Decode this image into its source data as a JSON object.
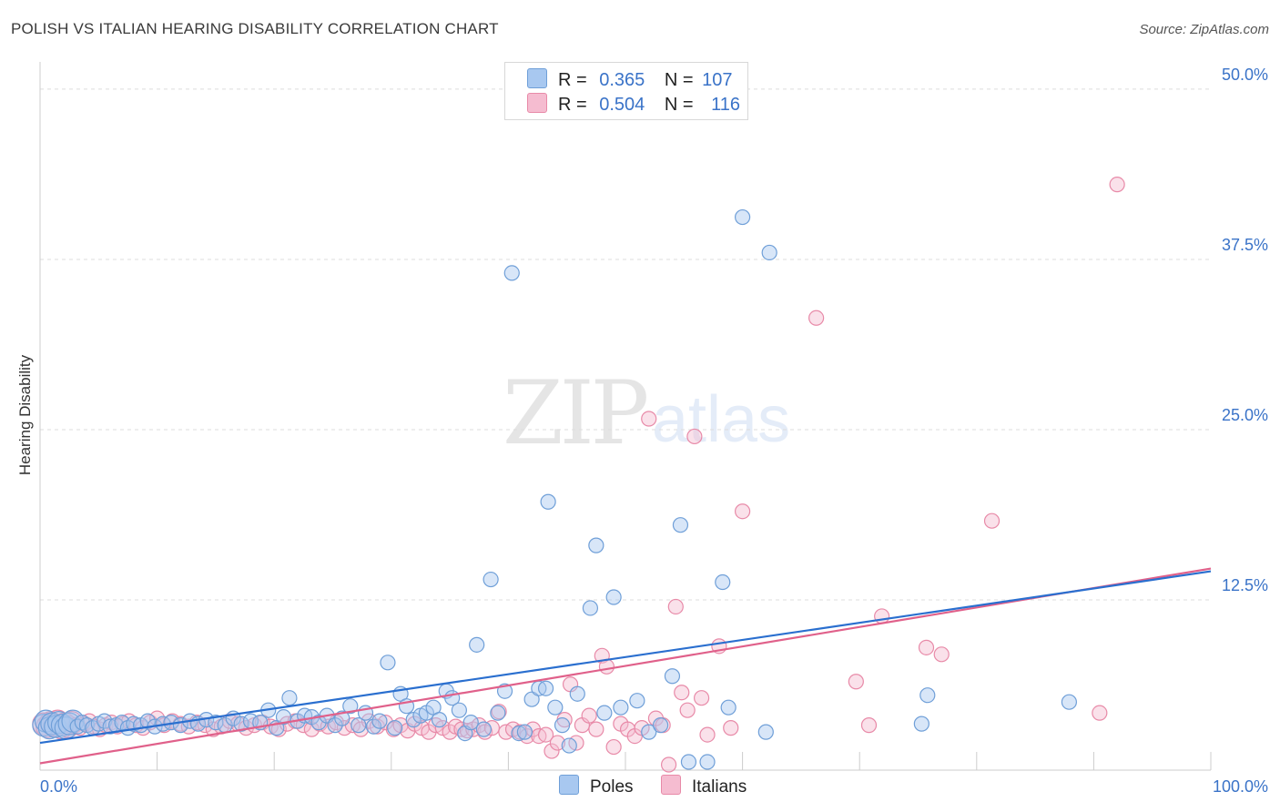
{
  "header": {
    "title": "POLISH VS ITALIAN HEARING DISABILITY CORRELATION CHART",
    "source": "Source: ZipAtlas.com"
  },
  "legend": {
    "r_label": "R =",
    "n_label": "N =",
    "poles": {
      "r": "0.365",
      "n": "107"
    },
    "italians": {
      "r": "0.504",
      "n": "116"
    }
  },
  "bottom_legend": {
    "poles": "Poles",
    "italians": "Italians"
  },
  "watermark": {
    "zip": "ZIP",
    "atlas": "atlas"
  },
  "colors": {
    "poles_fill": "#a8c8f0",
    "poles_stroke": "#6f9fd8",
    "poles_line": "#2a6fcf",
    "italians_fill": "#f5bcd0",
    "italians_stroke": "#e88aa8",
    "italians_line": "#e0608a"
  },
  "chart_data": {
    "type": "scatter",
    "title": "POLISH VS ITALIAN HEARING DISABILITY CORRELATION CHART",
    "xlabel": "",
    "ylabel": "Hearing Disability",
    "xlim": [
      0,
      100
    ],
    "ylim": [
      0,
      52
    ],
    "x_tick_labels": [
      "0.0%",
      "100.0%"
    ],
    "y_ticks": [
      12.5,
      25.0,
      37.5,
      50.0
    ],
    "y_tick_labels": [
      "12.5%",
      "25.0%",
      "37.5%",
      "50.0%"
    ],
    "grid": "horizontal dashed",
    "series": [
      {
        "name": "Poles",
        "trend": {
          "x": [
            0,
            100
          ],
          "y": [
            2.0,
            14.6
          ]
        },
        "points": [
          [
            0.3,
            3.3
          ],
          [
            0.5,
            3.6
          ],
          [
            0.8,
            3.1
          ],
          [
            1.0,
            3.4
          ],
          [
            1.3,
            3.2
          ],
          [
            1.6,
            3.5
          ],
          [
            1.9,
            3.3
          ],
          [
            2.2,
            3.1
          ],
          [
            2.5,
            3.4
          ],
          [
            2.8,
            3.6
          ],
          [
            3.2,
            3.2
          ],
          [
            3.6,
            3.5
          ],
          [
            4.0,
            3.3
          ],
          [
            4.5,
            3.1
          ],
          [
            5.0,
            3.4
          ],
          [
            5.5,
            3.6
          ],
          [
            6.0,
            3.2
          ],
          [
            6.5,
            3.3
          ],
          [
            7.0,
            3.5
          ],
          [
            7.5,
            3.1
          ],
          [
            8.0,
            3.4
          ],
          [
            8.6,
            3.3
          ],
          [
            9.2,
            3.6
          ],
          [
            9.8,
            3.2
          ],
          [
            10.5,
            3.4
          ],
          [
            11.2,
            3.5
          ],
          [
            12.0,
            3.3
          ],
          [
            12.8,
            3.6
          ],
          [
            13.5,
            3.4
          ],
          [
            14.2,
            3.7
          ],
          [
            15.0,
            3.5
          ],
          [
            15.8,
            3.3
          ],
          [
            16.5,
            3.8
          ],
          [
            17.2,
            3.4
          ],
          [
            18.0,
            3.6
          ],
          [
            18.8,
            3.5
          ],
          [
            19.5,
            4.4
          ],
          [
            20.2,
            3.1
          ],
          [
            20.8,
            3.9
          ],
          [
            21.3,
            5.3
          ],
          [
            22.0,
            3.6
          ],
          [
            22.6,
            4.0
          ],
          [
            23.2,
            3.9
          ],
          [
            23.8,
            3.5
          ],
          [
            24.5,
            4.0
          ],
          [
            25.2,
            3.3
          ],
          [
            25.8,
            3.8
          ],
          [
            26.5,
            4.7
          ],
          [
            27.2,
            3.3
          ],
          [
            27.8,
            4.2
          ],
          [
            28.5,
            3.2
          ],
          [
            29.0,
            3.6
          ],
          [
            29.7,
            7.9
          ],
          [
            30.3,
            3.1
          ],
          [
            30.8,
            5.6
          ],
          [
            31.3,
            4.7
          ],
          [
            31.9,
            3.7
          ],
          [
            32.5,
            4.0
          ],
          [
            33.0,
            4.2
          ],
          [
            33.6,
            4.6
          ],
          [
            34.1,
            3.7
          ],
          [
            34.7,
            5.8
          ],
          [
            35.2,
            5.3
          ],
          [
            35.8,
            4.4
          ],
          [
            36.3,
            2.7
          ],
          [
            36.8,
            3.5
          ],
          [
            37.3,
            9.2
          ],
          [
            37.9,
            3.0
          ],
          [
            38.5,
            14.0
          ],
          [
            39.1,
            4.2
          ],
          [
            39.7,
            5.8
          ],
          [
            40.3,
            36.5
          ],
          [
            40.9,
            2.7
          ],
          [
            41.4,
            2.8
          ],
          [
            42.0,
            5.2
          ],
          [
            42.6,
            6.0
          ],
          [
            43.2,
            6.0
          ],
          [
            43.4,
            19.7
          ],
          [
            44.0,
            4.6
          ],
          [
            44.6,
            3.3
          ],
          [
            45.2,
            1.8
          ],
          [
            45.9,
            5.6
          ],
          [
            47.0,
            11.9
          ],
          [
            47.5,
            16.5
          ],
          [
            48.2,
            4.2
          ],
          [
            49.0,
            12.7
          ],
          [
            49.6,
            4.6
          ],
          [
            51.0,
            5.1
          ],
          [
            52.0,
            2.8
          ],
          [
            53.0,
            3.3
          ],
          [
            54.0,
            6.9
          ],
          [
            54.7,
            18.0
          ],
          [
            55.4,
            0.6
          ],
          [
            57.0,
            0.6
          ],
          [
            58.3,
            13.8
          ],
          [
            58.8,
            4.6
          ],
          [
            60.0,
            40.6
          ],
          [
            62.0,
            2.8
          ],
          [
            62.3,
            38.0
          ],
          [
            75.3,
            3.4
          ],
          [
            75.8,
            5.5
          ],
          [
            87.9,
            5.0
          ]
        ]
      },
      {
        "name": "Italians",
        "trend": {
          "x": [
            0,
            100
          ],
          "y": [
            0.5,
            14.8
          ]
        },
        "points": [
          [
            0.3,
            3.4
          ],
          [
            0.6,
            3.2
          ],
          [
            0.9,
            3.5
          ],
          [
            1.2,
            3.3
          ],
          [
            1.5,
            3.6
          ],
          [
            1.8,
            3.1
          ],
          [
            2.1,
            3.4
          ],
          [
            2.4,
            3.2
          ],
          [
            2.7,
            3.5
          ],
          [
            3.0,
            3.3
          ],
          [
            3.4,
            3.1
          ],
          [
            3.8,
            3.4
          ],
          [
            4.2,
            3.6
          ],
          [
            4.6,
            3.2
          ],
          [
            5.1,
            3.0
          ],
          [
            5.6,
            3.3
          ],
          [
            6.1,
            3.5
          ],
          [
            6.6,
            3.2
          ],
          [
            7.1,
            3.4
          ],
          [
            7.6,
            3.6
          ],
          [
            8.2,
            3.3
          ],
          [
            8.8,
            3.1
          ],
          [
            9.4,
            3.5
          ],
          [
            10.0,
            3.8
          ],
          [
            10.6,
            3.3
          ],
          [
            11.3,
            3.6
          ],
          [
            12.0,
            3.4
          ],
          [
            12.7,
            3.2
          ],
          [
            13.4,
            3.5
          ],
          [
            14.1,
            3.3
          ],
          [
            14.8,
            3.0
          ],
          [
            15.5,
            3.2
          ],
          [
            16.2,
            3.6
          ],
          [
            16.9,
            3.4
          ],
          [
            17.6,
            3.1
          ],
          [
            18.3,
            3.3
          ],
          [
            19.0,
            3.5
          ],
          [
            19.7,
            3.2
          ],
          [
            20.4,
            3.0
          ],
          [
            21.1,
            3.4
          ],
          [
            21.8,
            3.6
          ],
          [
            22.5,
            3.3
          ],
          [
            23.2,
            3.0
          ],
          [
            23.9,
            3.4
          ],
          [
            24.6,
            3.2
          ],
          [
            25.3,
            3.5
          ],
          [
            26.0,
            3.1
          ],
          [
            26.7,
            3.3
          ],
          [
            27.4,
            3.0
          ],
          [
            28.1,
            3.6
          ],
          [
            28.8,
            3.2
          ],
          [
            29.5,
            3.5
          ],
          [
            30.2,
            3.0
          ],
          [
            30.8,
            3.3
          ],
          [
            31.4,
            2.9
          ],
          [
            32.0,
            3.4
          ],
          [
            32.6,
            3.1
          ],
          [
            33.2,
            2.8
          ],
          [
            33.8,
            3.3
          ],
          [
            34.4,
            3.1
          ],
          [
            35.0,
            2.8
          ],
          [
            35.5,
            3.2
          ],
          [
            36.0,
            3.0
          ],
          [
            36.5,
            2.9
          ],
          [
            37.0,
            3.0
          ],
          [
            37.5,
            3.3
          ],
          [
            38.0,
            2.8
          ],
          [
            38.6,
            3.1
          ],
          [
            39.2,
            4.3
          ],
          [
            39.8,
            2.8
          ],
          [
            40.4,
            3.0
          ],
          [
            41.0,
            2.8
          ],
          [
            41.6,
            2.5
          ],
          [
            42.1,
            3.0
          ],
          [
            42.6,
            2.5
          ],
          [
            43.2,
            2.6
          ],
          [
            43.7,
            1.4
          ],
          [
            44.2,
            2.0
          ],
          [
            44.8,
            3.7
          ],
          [
            45.3,
            6.3
          ],
          [
            45.8,
            2.0
          ],
          [
            46.3,
            3.3
          ],
          [
            46.9,
            4.0
          ],
          [
            47.5,
            3.0
          ],
          [
            48.0,
            8.4
          ],
          [
            48.4,
            7.6
          ],
          [
            49.0,
            1.7
          ],
          [
            49.6,
            3.4
          ],
          [
            50.2,
            3.0
          ],
          [
            50.8,
            2.5
          ],
          [
            51.4,
            3.1
          ],
          [
            52.0,
            25.8
          ],
          [
            52.6,
            3.8
          ],
          [
            53.2,
            3.3
          ],
          [
            53.7,
            0.4
          ],
          [
            54.3,
            12.0
          ],
          [
            54.8,
            5.7
          ],
          [
            55.3,
            4.4
          ],
          [
            55.9,
            24.5
          ],
          [
            56.5,
            5.3
          ],
          [
            57.0,
            2.6
          ],
          [
            58.0,
            9.1
          ],
          [
            59.0,
            3.1
          ],
          [
            60.0,
            19.0
          ],
          [
            66.3,
            33.2
          ],
          [
            69.7,
            6.5
          ],
          [
            70.8,
            3.3
          ],
          [
            71.9,
            11.3
          ],
          [
            75.7,
            9.0
          ],
          [
            77.0,
            8.5
          ],
          [
            81.3,
            18.3
          ],
          [
            90.5,
            4.2
          ],
          [
            92.0,
            43.0
          ]
        ]
      }
    ]
  }
}
